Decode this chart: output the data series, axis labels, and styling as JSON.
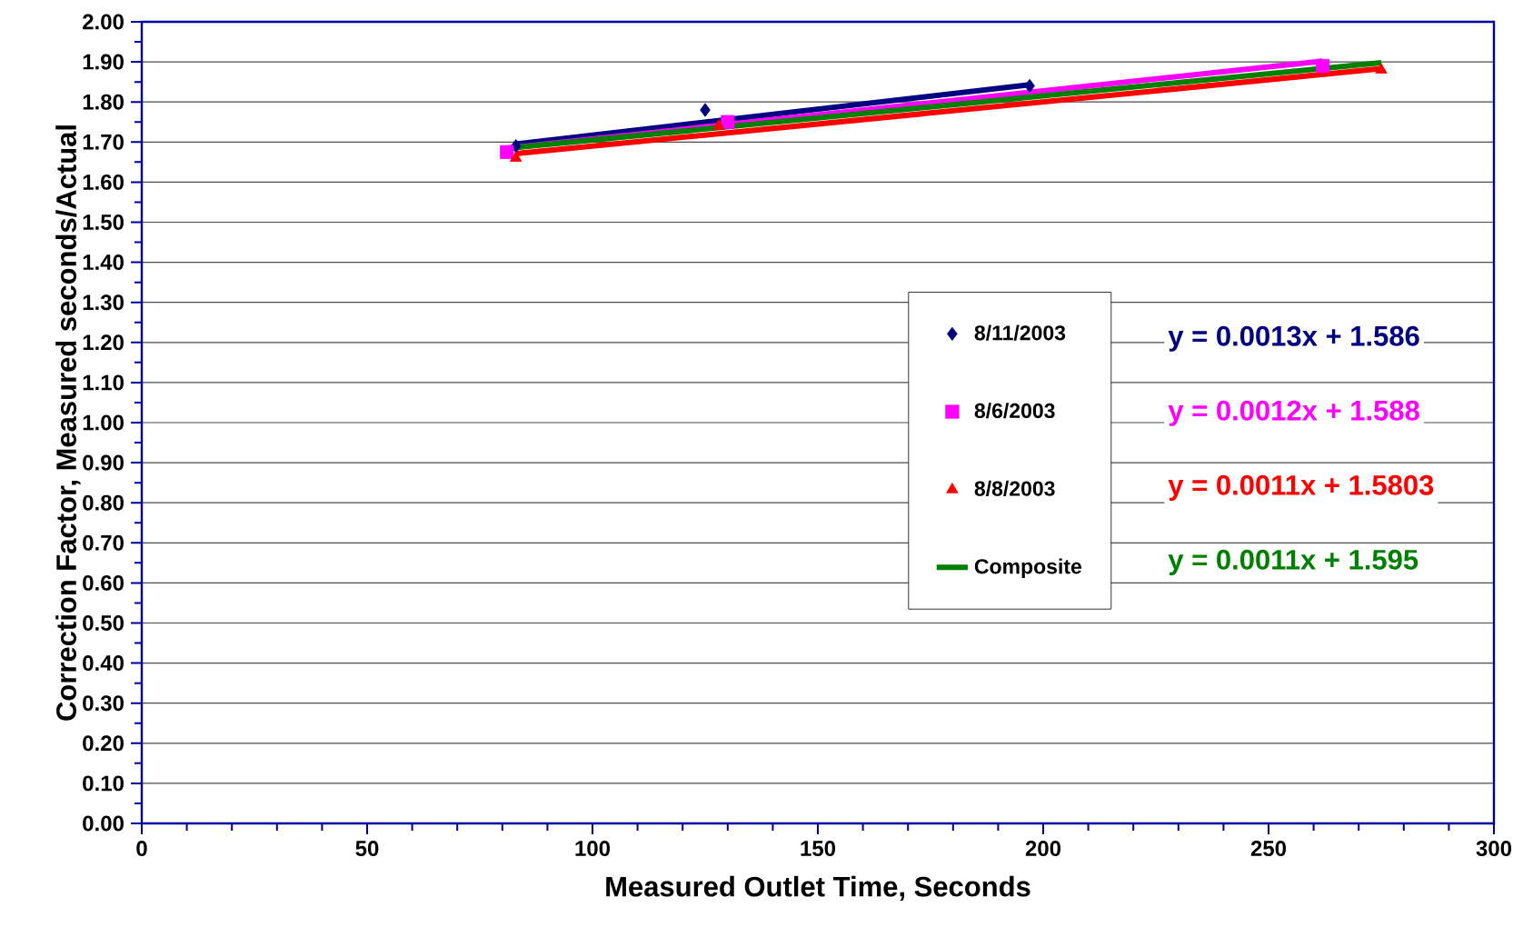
{
  "chart_data": {
    "type": "scatter",
    "xlabel": "Measured Outlet Time, Seconds",
    "ylabel": "Correction Factor, Measured seconds/Actual",
    "xlim": [
      0,
      300
    ],
    "xticks": [
      0,
      50,
      100,
      150,
      200,
      250,
      300
    ],
    "ylim": [
      0,
      2
    ],
    "yticks": [
      {
        "value": 0,
        "label": "0.00"
      },
      {
        "value": 0.1,
        "label": "0.10"
      },
      {
        "value": 0.2,
        "label": "0.20"
      },
      {
        "value": 0.3,
        "label": "0.30"
      },
      {
        "value": 0.4,
        "label": "0.40"
      },
      {
        "value": 0.5,
        "label": "0.50"
      },
      {
        "value": 0.6,
        "label": "0.60"
      },
      {
        "value": 0.7,
        "label": "0.70"
      },
      {
        "value": 0.8,
        "label": "0.80"
      },
      {
        "value": 0.9,
        "label": "0.90"
      },
      {
        "value": 1.0,
        "label": "1.00"
      },
      {
        "value": 1.1,
        "label": "1.10"
      },
      {
        "value": 1.2,
        "label": "1.20"
      },
      {
        "value": 1.3,
        "label": "1.30"
      },
      {
        "value": 1.4,
        "label": "1.40"
      },
      {
        "value": 1.5,
        "label": "1.50"
      },
      {
        "value": 1.6,
        "label": "1.60"
      },
      {
        "value": 1.7,
        "label": "1.70"
      },
      {
        "value": 1.8,
        "label": "1.80"
      },
      {
        "value": 1.9,
        "label": "1.90"
      },
      {
        "value": 2.0,
        "label": "2.00"
      }
    ],
    "grid": "y",
    "legend": "right",
    "series": [
      {
        "name": "8/11/2003",
        "marker": "diamond",
        "color": "#000080",
        "x": [
          83,
          125,
          197
        ],
        "values": [
          1.69,
          1.78,
          1.84
        ]
      },
      {
        "name": "8/6/2003",
        "marker": "square",
        "color": "#ff00ff",
        "x": [
          81,
          130,
          262
        ],
        "values": [
          1.675,
          1.75,
          1.89
        ]
      },
      {
        "name": "8/8/2003",
        "marker": "triangle",
        "color": "#ff0000",
        "x": [
          83,
          128,
          275
        ],
        "values": [
          1.66,
          1.74,
          1.88
        ]
      },
      {
        "type": "line",
        "color": "#000080",
        "x": [
          83,
          197
        ],
        "values": [
          1.695,
          1.843
        ]
      },
      {
        "type": "line",
        "color": "#ff00ff",
        "x": [
          81,
          262
        ],
        "values": [
          1.685,
          1.902
        ]
      },
      {
        "type": "line",
        "color": "#ff0000",
        "x": [
          83,
          275
        ],
        "values": [
          1.671,
          1.883
        ]
      },
      {
        "name": "Composite",
        "type": "line",
        "color": "#008000",
        "x": [
          81,
          275
        ],
        "values": [
          1.684,
          1.898
        ]
      }
    ],
    "annotations": [
      "y = 0.0013x + 1.586",
      "y = 0.0012x + 1.588",
      "y = 0.0011x + 1.5803",
      "y = 0.0011x + 1.595"
    ]
  }
}
